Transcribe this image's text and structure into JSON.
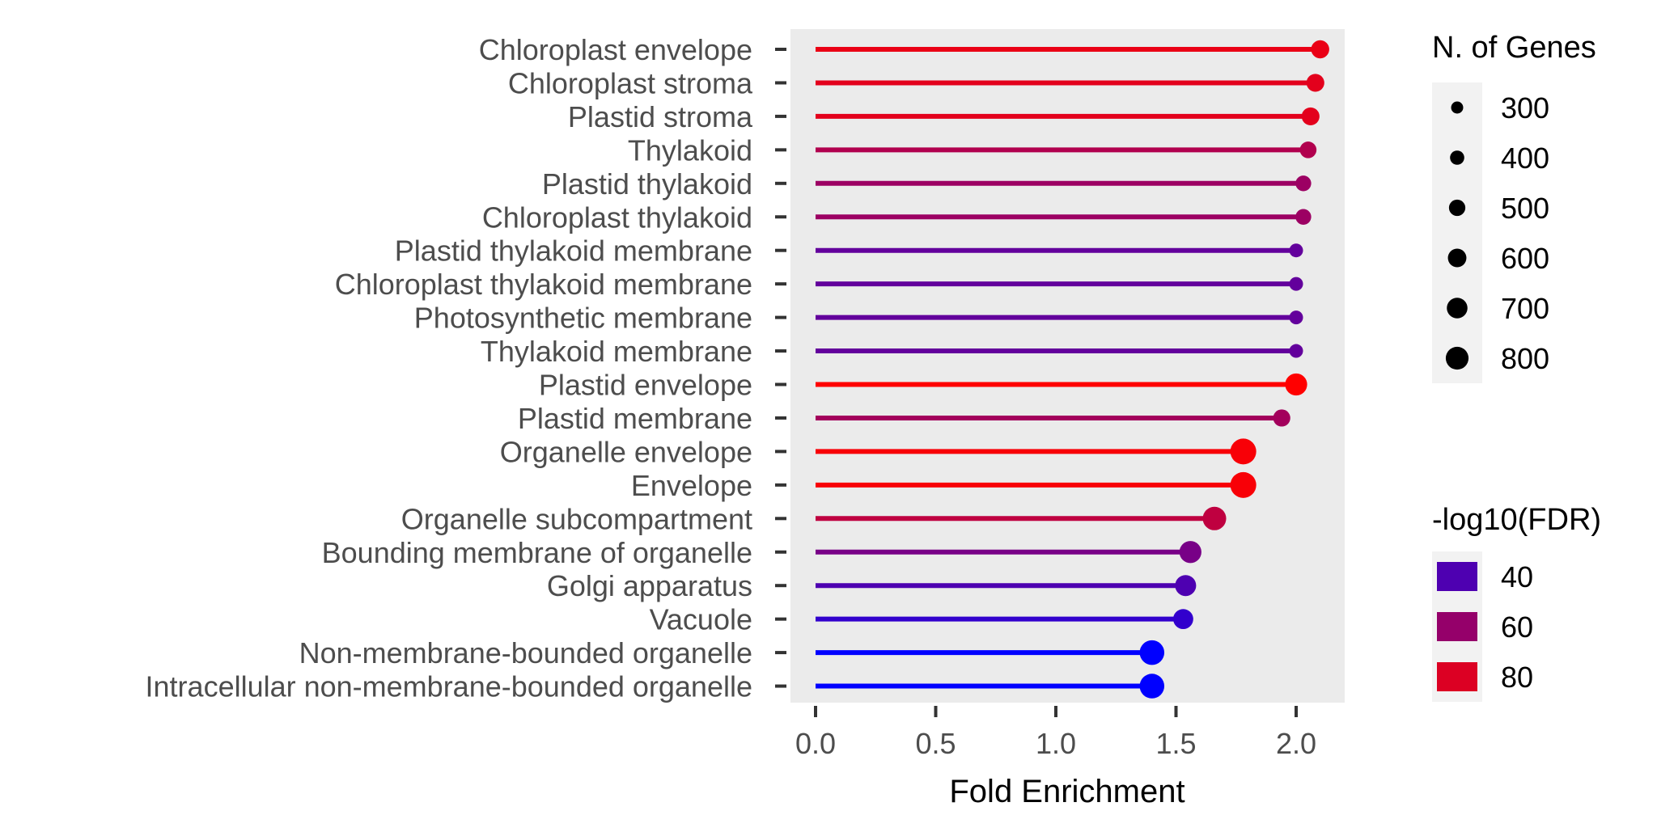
{
  "chart_data": {
    "type": "lollipop",
    "xlabel": "Fold Enrichment",
    "xlim": [
      -0.1,
      2.2
    ],
    "x_ticks": [
      "0.0",
      "0.5",
      "1.0",
      "1.5",
      "2.0"
    ],
    "x_tick_values": [
      0.0,
      0.5,
      1.0,
      1.5,
      2.0
    ],
    "grid": false,
    "categories": [
      "Chloroplast envelope",
      "Chloroplast stroma",
      "Plastid stroma",
      "Thylakoid",
      "Plastid thylakoid",
      "Chloroplast thylakoid",
      "Plastid thylakoid membrane",
      "Chloroplast thylakoid membrane",
      "Photosynthetic membrane",
      "Thylakoid membrane",
      "Plastid envelope",
      "Plastid membrane",
      "Organelle envelope",
      "Envelope",
      "Organelle subcompartment",
      "Bounding membrane of organelle",
      "Golgi apparatus",
      "Vacuole",
      "Non-membrane-bounded organelle",
      "Intracellular non-membrane-bounded organelle"
    ],
    "fold_enrichment": [
      2.1,
      2.08,
      2.06,
      2.05,
      2.03,
      2.03,
      2.0,
      2.0,
      2.0,
      2.0,
      2.0,
      1.94,
      1.78,
      1.78,
      1.66,
      1.56,
      1.54,
      1.53,
      1.4,
      1.4
    ],
    "n_genes": [
      480,
      470,
      470,
      420,
      380,
      380,
      300,
      300,
      300,
      300,
      640,
      440,
      800,
      800,
      700,
      640,
      600,
      560,
      750,
      750
    ],
    "neg_log10_fdr": [
      84,
      82,
      82,
      68,
      62,
      62,
      46,
      46,
      46,
      46,
      90,
      64,
      88,
      88,
      72,
      52,
      40,
      32,
      18,
      18
    ],
    "color_scale": {
      "low_value": 18,
      "low": "#0000ff",
      "high_value": 90,
      "high": "#ff0000"
    },
    "legend_size": {
      "title": "N. of Genes",
      "labels": [
        "300",
        "400",
        "500",
        "600",
        "700",
        "800"
      ],
      "values": [
        300,
        400,
        500,
        600,
        700,
        800
      ]
    },
    "legend_color": {
      "title": "-log10(FDR)",
      "labels": [
        "40",
        "60",
        "80"
      ],
      "values": [
        40,
        60,
        80
      ]
    },
    "legend_position": "right"
  }
}
